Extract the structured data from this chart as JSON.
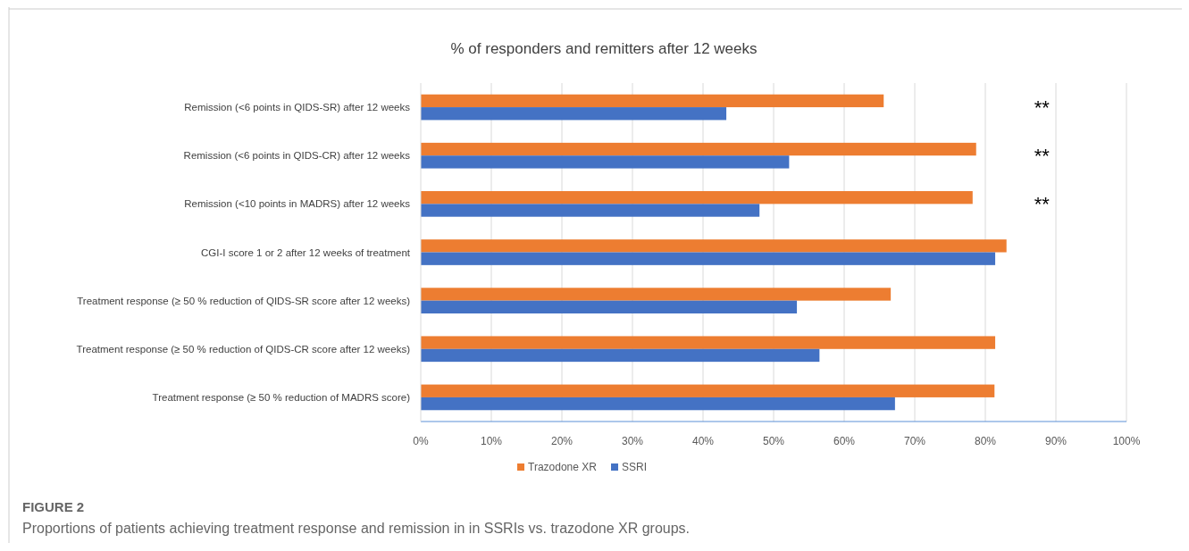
{
  "chart_data": {
    "type": "bar",
    "orientation": "horizontal",
    "title": "% of responders and remitters after 12 weeks",
    "categories": [
      "Remission (<6 points in QIDS-SR) after 12 weeks",
      "Remission (<6 points in QIDS-CR) after 12 weeks",
      "Remission (<10 points in MADRS) after 12 weeks",
      "CGI-I score 1 or 2 after 12 weeks of treatment",
      "Treatment response (≥ 50 % reduction of QIDS-SR score after 12 weeks)",
      "Treatment response (≥ 50 % reduction of QIDS-CR score after 12 weeks)",
      "Treatment response (≥ 50 % reduction of MADRS score)"
    ],
    "series": [
      {
        "name": "Trazodone XR",
        "color": "#ed7d31",
        "values": [
          65.6,
          78.7,
          78.2,
          83.0,
          66.6,
          81.4,
          81.3
        ]
      },
      {
        "name": "SSRI",
        "color": "#4472c4",
        "values": [
          43.3,
          52.2,
          48.0,
          81.4,
          53.3,
          56.5,
          67.2
        ]
      }
    ],
    "xlim": [
      0,
      100
    ],
    "xticks": [
      {
        "value": 0,
        "label": "0%"
      },
      {
        "value": 10,
        "label": "10%"
      },
      {
        "value": 20,
        "label": "20%"
      },
      {
        "value": 30,
        "label": "30%"
      },
      {
        "value": 40,
        "label": "40%"
      },
      {
        "value": 50,
        "label": "50%"
      },
      {
        "value": 60,
        "label": "60%"
      },
      {
        "value": 70,
        "label": "70%"
      },
      {
        "value": 80,
        "label": "80%"
      },
      {
        "value": 90,
        "label": "90%"
      },
      {
        "value": 100,
        "label": "100%"
      }
    ],
    "grid": "x",
    "legend": "bottom",
    "annotations": [
      "**",
      "**",
      "**",
      "FIGURE 2",
      "Proportions of patients achieving treatment response and remission in in SSRIs vs. trazodone XR groups."
    ]
  }
}
